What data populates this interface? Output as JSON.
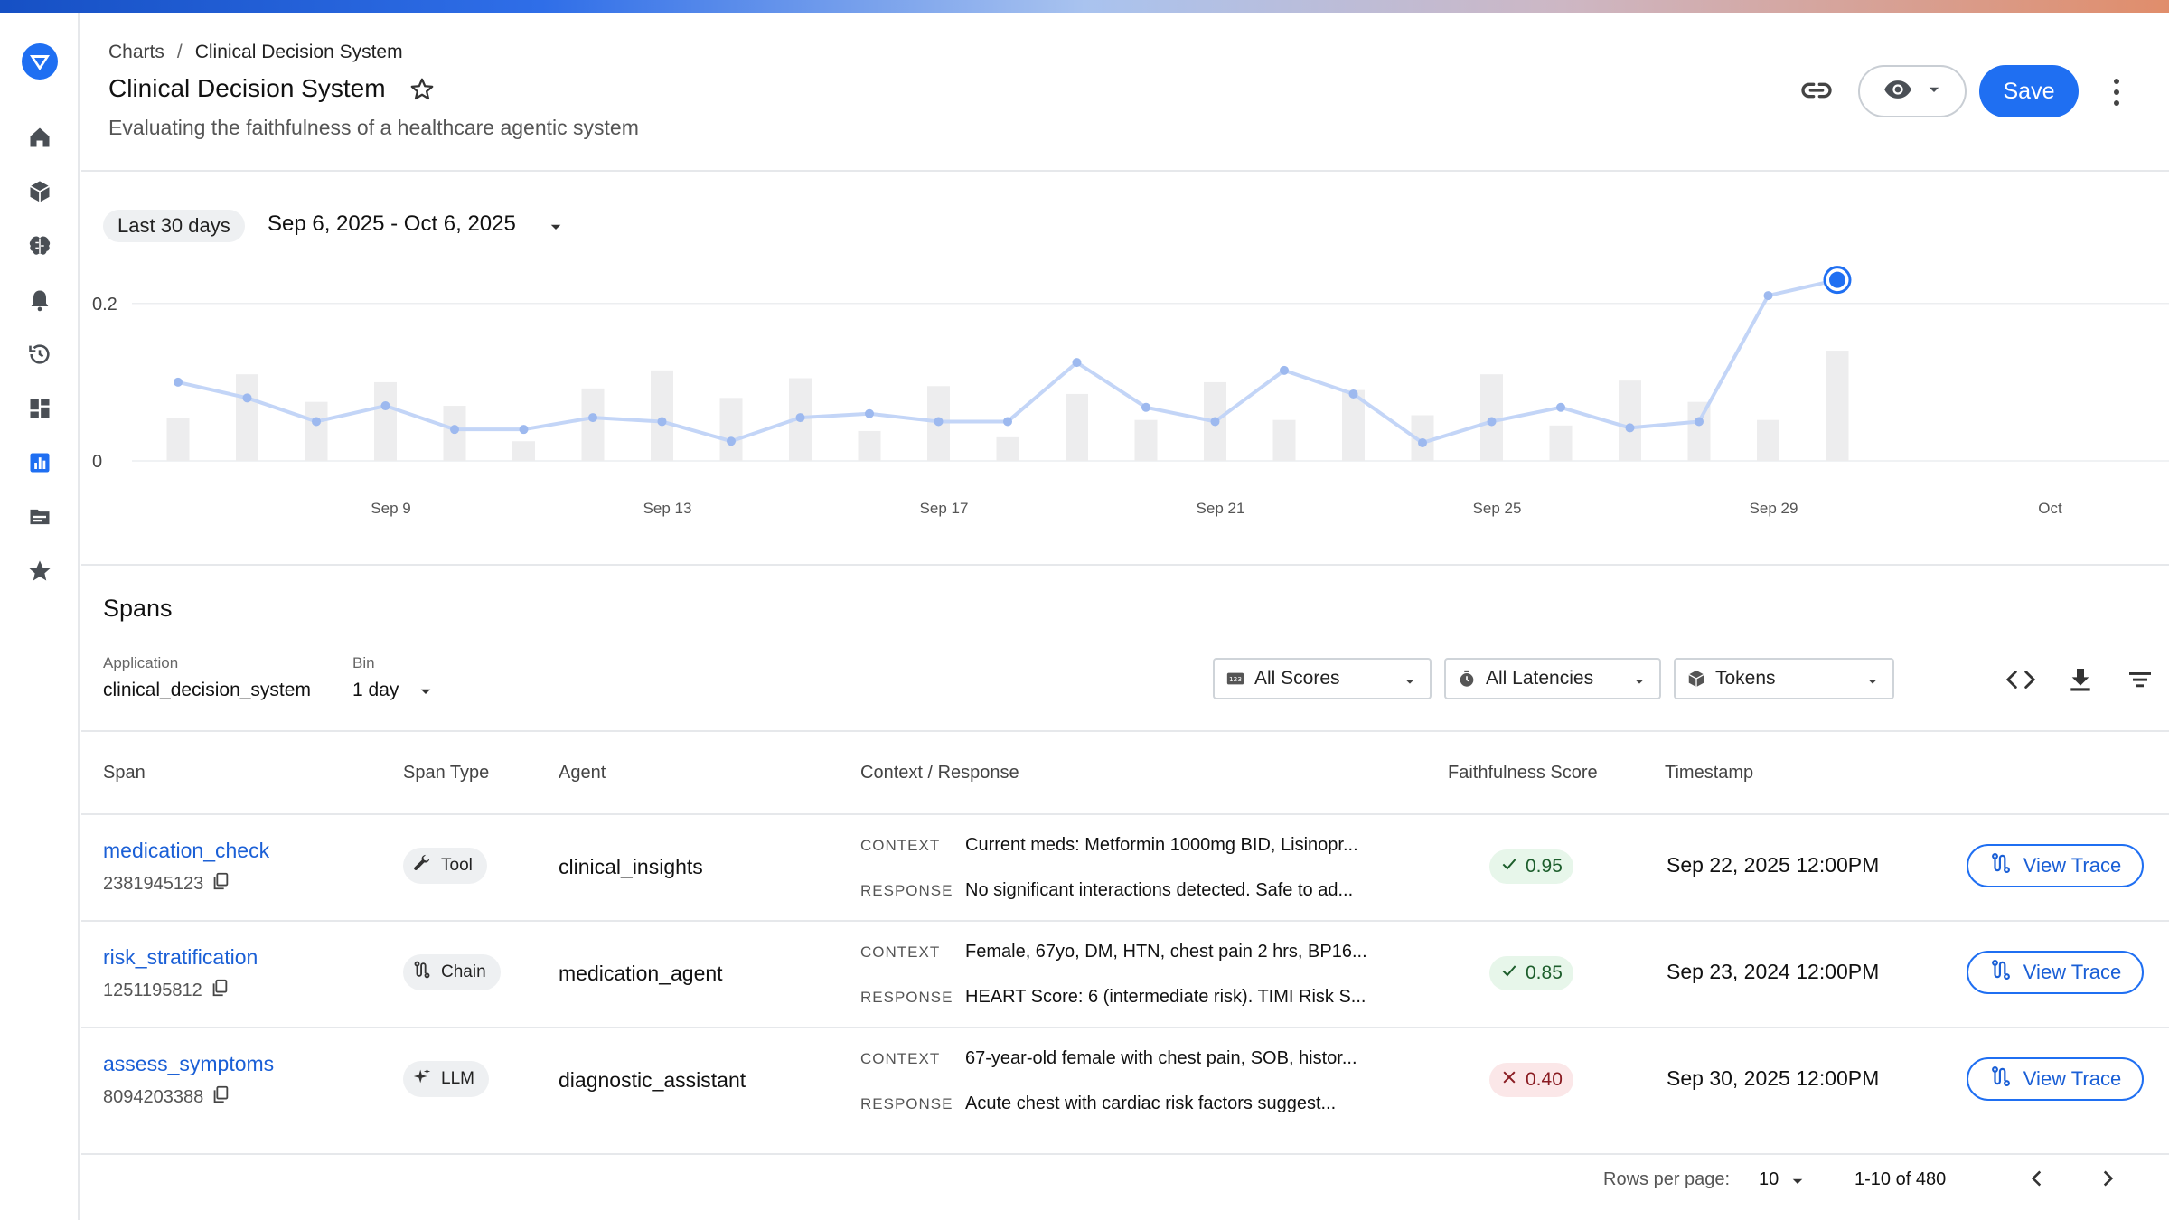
{
  "breadcrumb": {
    "parent": "Charts",
    "separator": "/",
    "current": "Clinical Decision System"
  },
  "header": {
    "title": "Clinical Decision System",
    "subtitle": "Evaluating the faithfulness of a healthcare agentic system",
    "save_label": "Save"
  },
  "sidebar": {
    "items": [
      "home-icon",
      "cube-icon",
      "brain-icon",
      "bell-icon",
      "history-icon",
      "dashboard-icon",
      "chart-icon",
      "folder-icon",
      "star-icon"
    ],
    "active": "chart-icon"
  },
  "date_range": {
    "preset": "Last 30 days",
    "value": "Sep 6, 2025 - Oct 6, 2025"
  },
  "chart_data": {
    "type": "line",
    "x": [
      "Sep 6",
      "Sep 7",
      "Sep 8",
      "Sep 9",
      "Sep 10",
      "Sep 11",
      "Sep 12",
      "Sep 13",
      "Sep 14",
      "Sep 15",
      "Sep 16",
      "Sep 17",
      "Sep 18",
      "Sep 19",
      "Sep 20",
      "Sep 21",
      "Sep 22",
      "Sep 23",
      "Sep 24",
      "Sep 25",
      "Sep 26",
      "Sep 27",
      "Sep 28",
      "Sep 29",
      "Sep 30"
    ],
    "series": [
      {
        "values": [
          0.1,
          0.08,
          0.05,
          0.07,
          0.04,
          0.04,
          0.055,
          0.05,
          0.025,
          0.055,
          0.06,
          0.05,
          0.05,
          0.125,
          0.068,
          0.05,
          0.115,
          0.085,
          0.023,
          0.05,
          0.068,
          0.042,
          0.05,
          0.21,
          0.23
        ]
      },
      {
        "type": "bar",
        "values": [
          0.055,
          0.11,
          0.075,
          0.1,
          0.07,
          0.025,
          0.092,
          0.115,
          0.08,
          0.105,
          0.038,
          0.095,
          0.03,
          0.085,
          0.052,
          0.1,
          0.052,
          0.09,
          0.058,
          0.11,
          0.045,
          0.102,
          0.075,
          0.052,
          0.14
        ]
      }
    ],
    "y_ticks": [
      "0.2",
      "0"
    ],
    "ylim": [
      0,
      0.25
    ],
    "x_ticks": [
      {
        "label": "Sep 9",
        "index": 3
      },
      {
        "label": "Sep 13",
        "index": 7
      },
      {
        "label": "Sep 17",
        "index": 11
      },
      {
        "label": "Sep 21",
        "index": 15
      },
      {
        "label": "Sep 25",
        "index": 19
      },
      {
        "label": "Sep 29",
        "index": 23
      },
      {
        "label": "Oct",
        "index": 27
      }
    ],
    "highlighted_index": 24,
    "grid": true,
    "colors": {
      "line": "#c3d5f7",
      "point": "#9db9ef",
      "bar": "#ededee",
      "highlight": "#1f6ff2"
    }
  },
  "spans": {
    "title": "Spans",
    "filters": {
      "application_label": "Application",
      "application_value": "clinical_decision_system",
      "bin_label": "Bin",
      "bin_value": "1 day",
      "scores": "All Scores",
      "latencies": "All Latencies",
      "tokens": "Tokens"
    },
    "columns": [
      "Span",
      "Span Type",
      "Agent",
      "Context / Response",
      "Faithfulness Score",
      "Timestamp"
    ],
    "context_label": "CONTEXT",
    "response_label": "RESPONSE",
    "trace_label": "View Trace",
    "rows": [
      {
        "name": "medication_check",
        "id": "2381945123",
        "type": "Tool",
        "type_icon": "wrench-icon",
        "agent": "clinical_insights",
        "context": "Current meds: Metformin 1000mg BID, Lisinopr...",
        "response": "No significant interactions detected. Safe to ad...",
        "score": "0.95",
        "score_status": "pass",
        "timestamp": "Sep 22, 2025 12:00PM"
      },
      {
        "name": "risk_stratification",
        "id": "1251195812",
        "type": "Chain",
        "type_icon": "chain-icon",
        "agent": "medication_agent",
        "context": "Female, 67yo, DM, HTN, chest pain 2 hrs, BP16...",
        "response": "HEART Score: 6 (intermediate risk). TIMI Risk S...",
        "score": "0.85",
        "score_status": "pass",
        "timestamp": "Sep 23, 2024 12:00PM"
      },
      {
        "name": "assess_symptoms",
        "id": "8094203388",
        "type": "LLM",
        "type_icon": "sparkle-icon",
        "agent": "diagnostic_assistant",
        "context": "67-year-old female with chest pain, SOB, histor...",
        "response": "Acute chest with cardiac risk factors suggest...",
        "score": "0.40",
        "score_status": "fail",
        "timestamp": "Sep 30, 2025 12:00PM"
      }
    ]
  },
  "pagination": {
    "rows_label": "Rows per page:",
    "rows_value": "10",
    "range": "1-10 of 480"
  }
}
